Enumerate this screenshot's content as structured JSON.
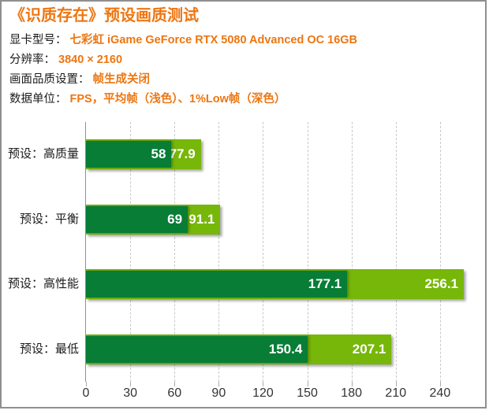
{
  "header": {
    "title": "《识质存在》预设画质测试",
    "info": [
      {
        "label": "显卡型号：",
        "value": "七彩虹 iGame GeForce RTX 5080 Advanced OC 16GB"
      },
      {
        "label": "分辨率：",
        "value": "3840 × 2160"
      },
      {
        "label": "画面品质设置：",
        "value": "帧生成关闭"
      },
      {
        "label": "数据单位：",
        "value": "FPS，平均帧（浅色）、1%Low帧（深色）"
      }
    ]
  },
  "chart_data": {
    "type": "bar",
    "orientation": "horizontal",
    "title": "《识质存在》预设画质测试",
    "categories": [
      "预设：高质量",
      "预设：平衡",
      "预设：高性能",
      "预设：最低"
    ],
    "series": [
      {
        "name": "平均帧（浅色）",
        "role": "average-fps",
        "color_key": "light_green",
        "values": [
          77.9,
          91.1,
          256.1,
          207.1
        ],
        "labels": [
          "77.9",
          "91.1",
          "256.1",
          "207.1"
        ]
      },
      {
        "name": "1%Low帧（深色）",
        "role": "one-percent-low-fps",
        "color_key": "dark_green",
        "values": [
          58,
          69,
          177.1,
          150.4
        ],
        "labels": [
          "58",
          "69",
          "177.1",
          "150.4"
        ]
      }
    ],
    "x_ticks": [
      0,
      30,
      60,
      90,
      120,
      150,
      180,
      210,
      240
    ],
    "xlim": [
      0,
      270
    ],
    "grid": "dashed-vertical",
    "legend_position": "none"
  },
  "colors": {
    "accent_orange": "#ED7611",
    "light_green": "#76B709",
    "dark_green": "#077D36",
    "gridline": "#C8C8C8",
    "axis_line": "#909090",
    "border": "#8F8F8F",
    "text": "#1A1A1A"
  }
}
